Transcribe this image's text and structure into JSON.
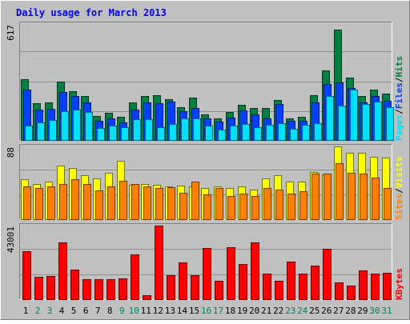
{
  "chart_data": {
    "type": "bar",
    "title": "Daily usage for March 2013",
    "categories": [
      "1",
      "2",
      "3",
      "4",
      "5",
      "6",
      "7",
      "8",
      "9",
      "10",
      "11",
      "12",
      "13",
      "14",
      "15",
      "16",
      "17",
      "18",
      "19",
      "20",
      "21",
      "22",
      "23",
      "24",
      "25",
      "26",
      "27",
      "28",
      "29",
      "30",
      "31"
    ],
    "weekend_days": [
      "2",
      "3",
      "9",
      "10",
      "16",
      "17",
      "23",
      "24",
      "30",
      "31"
    ],
    "panels": [
      {
        "id": "hits",
        "ymax": 617,
        "ymax_label": "617",
        "side_legend": [
          "Pages",
          "Files",
          "Hits"
        ],
        "series": [
          {
            "name": "Hits",
            "color": "#008040",
            "values": [
              323,
              195,
              200,
              310,
              261,
              233,
              128,
              144,
              122,
              198,
              236,
              240,
              218,
              175,
              227,
              137,
              117,
              147,
              189,
              169,
              170,
              213,
              116,
              123,
              240,
              370,
              588,
              332,
              232,
              270,
              247
            ]
          },
          {
            "name": "Files",
            "color": "#0040FF",
            "values": [
              269,
              162,
              165,
              257,
              233,
              202,
              102,
              113,
              95,
              162,
              202,
              197,
              206,
              152,
              172,
              114,
              98,
              118,
              159,
              138,
              113,
              190,
              102,
              104,
              198,
              296,
              305,
              278,
              199,
              234,
              210
            ]
          },
          {
            "name": "Pages",
            "color": "#00E0FF",
            "values": [
              76,
              95,
              105,
              152,
              163,
              149,
              65,
              78,
              68,
              109,
              109,
              69,
              87,
              117,
              117,
              76,
              56,
              76,
              83,
              70,
              79,
              89,
              61,
              81,
              90,
              232,
              181,
              269,
              190,
              203,
              175
            ]
          }
        ]
      },
      {
        "id": "visits",
        "ymax": 88,
        "ymax_label": "88",
        "side_legend": [
          "Sites",
          "Visits"
        ],
        "series": [
          {
            "name": "Visits",
            "color": "#FFFF00",
            "values": [
              48,
              43,
              45,
              65,
              62,
              53,
              49,
              56,
              71,
              42,
              43,
              42,
              40,
              41,
              40,
              38,
              40,
              38,
              40,
              36,
              49,
              53,
              45,
              45,
              57,
              54,
              88,
              80,
              80,
              75,
              74
            ]
          },
          {
            "name": "Sites",
            "color": "#FF8000",
            "values": [
              40,
              38,
              40,
              43,
              48,
              43,
              35,
              40,
              46,
              43,
              40,
              38,
              39,
              32,
              45,
              30,
              38,
              28,
              31,
              28,
              38,
              36,
              31,
              34,
              55,
              55,
              68,
              56,
              55,
              50,
              38
            ]
          }
        ]
      },
      {
        "id": "kbytes",
        "ymax": 43001,
        "ymax_label": "43001",
        "side_legend": [
          "KBytes"
        ],
        "series": [
          {
            "name": "KBytes",
            "color": "#FF0000",
            "values": [
              28032,
              12905,
              13355,
              33064,
              17288,
              11887,
              11773,
              11917,
              12300,
              26197,
              2541,
              43001,
              14232,
              21336,
              14245,
              30125,
              10953,
              30429,
              20592,
              33064,
              14855,
              10946,
              21787,
              14860,
              19543,
              29595,
              9853,
              7999,
              16854,
              14842,
              15230
            ]
          }
        ]
      }
    ],
    "grid": true
  },
  "colors": {
    "page_background": "#FFFFFF",
    "frame": "#C0C0C0",
    "plot_background": "#C0C0C0",
    "title": "#0000FF",
    "weekday_label": "#000000",
    "weekend_label": "#00805C"
  }
}
